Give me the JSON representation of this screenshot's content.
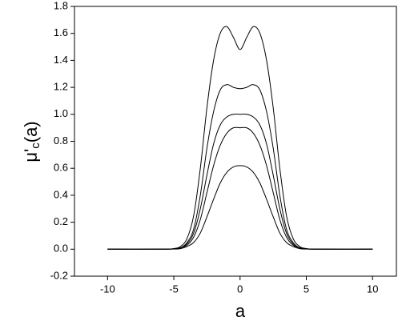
{
  "chart_data": {
    "type": "line",
    "xlabel": "a",
    "ylabel_parts": [
      "μ'",
      "c",
      "(a)"
    ],
    "x": [
      -10,
      -6,
      -5,
      -4.5,
      -4,
      -3.5,
      -3,
      -2.5,
      -2,
      -1.5,
      -1,
      -0.5,
      0,
      0.5,
      1,
      1.5,
      2,
      2.5,
      3,
      3.5,
      4,
      4.5,
      5,
      6,
      10
    ],
    "series": [
      {
        "color": "#000000",
        "values": [
          0,
          0,
          0.005,
          0.02,
          0.08,
          0.25,
          0.6,
          1.05,
          1.4,
          1.6,
          1.65,
          1.57,
          1.48,
          1.57,
          1.65,
          1.6,
          1.4,
          1.05,
          0.6,
          0.25,
          0.08,
          0.02,
          0.005,
          0,
          0
        ]
      },
      {
        "color": "#000000",
        "values": [
          0,
          0,
          0.003,
          0.01,
          0.05,
          0.15,
          0.4,
          0.75,
          1.02,
          1.18,
          1.22,
          1.2,
          1.19,
          1.2,
          1.22,
          1.18,
          1.02,
          0.75,
          0.4,
          0.15,
          0.05,
          0.01,
          0.003,
          0,
          0
        ]
      },
      {
        "color": "#000000",
        "values": [
          0,
          0,
          0.003,
          0.01,
          0.04,
          0.12,
          0.3,
          0.55,
          0.78,
          0.92,
          0.98,
          1.0,
          1.0,
          1.0,
          0.98,
          0.92,
          0.78,
          0.55,
          0.3,
          0.12,
          0.04,
          0.01,
          0.003,
          0,
          0
        ]
      },
      {
        "color": "#000000",
        "values": [
          0,
          0,
          0.002,
          0.01,
          0.03,
          0.09,
          0.22,
          0.42,
          0.62,
          0.77,
          0.86,
          0.9,
          0.9,
          0.9,
          0.86,
          0.77,
          0.62,
          0.42,
          0.22,
          0.09,
          0.03,
          0.01,
          0.002,
          0,
          0
        ]
      },
      {
        "color": "#000000",
        "values": [
          0,
          0,
          0.001,
          0.004,
          0.02,
          0.05,
          0.12,
          0.24,
          0.37,
          0.49,
          0.57,
          0.61,
          0.62,
          0.61,
          0.57,
          0.49,
          0.37,
          0.24,
          0.12,
          0.05,
          0.02,
          0.004,
          0.001,
          0,
          0
        ]
      }
    ],
    "xlim": [
      -12.5,
      11.8
    ],
    "xticks": [
      -10,
      -5,
      0,
      5,
      10
    ],
    "ylim": [
      -0.2,
      1.8
    ],
    "yticks": [
      -0.2,
      {
        "value": 0,
        "label": "0.0"
      },
      0.2,
      0.4,
      0.6,
      0.8,
      {
        "value": 1,
        "label": "1.0"
      },
      1.2,
      1.4,
      1.6,
      1.8
    ],
    "grid": false
  }
}
